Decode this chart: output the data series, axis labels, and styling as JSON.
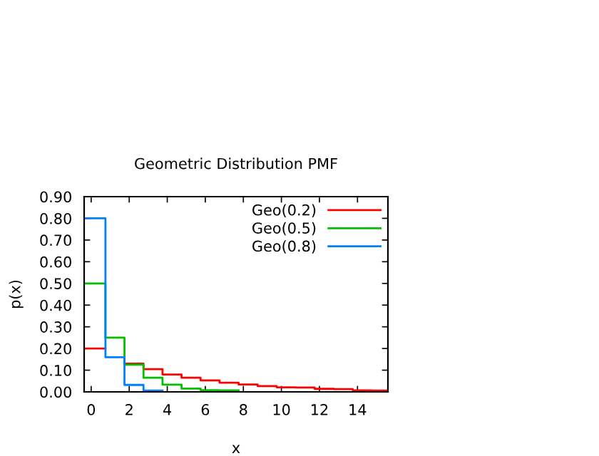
{
  "chart_data": {
    "type": "step",
    "title": "Geometric Distribution PMF",
    "xlabel": "x",
    "ylabel": "p(x)",
    "xlim": [
      -0.37,
      15.6
    ],
    "xticks": [
      0,
      2,
      4,
      6,
      8,
      10,
      12,
      14
    ],
    "ylim": [
      0,
      0.9
    ],
    "yticks": [
      {
        "value": 0,
        "label": "0.00"
      },
      {
        "value": 0.1,
        "label": "0.10"
      },
      {
        "value": 0.2,
        "label": "0.20"
      },
      {
        "value": 0.3,
        "label": "0.30"
      },
      {
        "value": 0.4,
        "label": "0.40"
      },
      {
        "value": 0.5,
        "label": "0.50"
      },
      {
        "value": 0.6,
        "label": "0.60"
      },
      {
        "value": 0.7,
        "label": "0.70"
      },
      {
        "value": 0.8,
        "label": "0.80"
      },
      {
        "value": 0.9,
        "label": "0.90"
      }
    ],
    "legend": "top right",
    "grid": false,
    "series": [
      {
        "name": "Geo(0.2)",
        "color": "#ff0000",
        "x": [
          -0.37,
          0.75,
          1.75,
          2.75,
          3.75,
          4.75,
          5.75,
          6.75,
          7.75,
          8.75,
          9.75,
          10.75,
          11.75,
          12.75,
          13.75,
          14.75,
          15.6
        ],
        "values": [
          0.2,
          null,
          0.13,
          0.105,
          0.08,
          0.065,
          0.053,
          0.042,
          0.034,
          0.027,
          0.021,
          0.02,
          0.014,
          0.013,
          0.007,
          0.006,
          0.006
        ]
      },
      {
        "name": "Geo(0.5)",
        "color": "#00c000",
        "x": [
          -0.37,
          0.75,
          1.75,
          2.75,
          3.75,
          4.75,
          5.75,
          6.75,
          7.75
        ],
        "values": [
          0.5,
          0.25,
          0.125,
          0.065,
          0.033,
          0.015,
          0.008,
          0.007,
          0.007
        ]
      },
      {
        "name": "Geo(0.8)",
        "color": "#0080ff",
        "x": [
          -0.37,
          0.75,
          1.75,
          2.75,
          3.75
        ],
        "values": [
          0.8,
          0.16,
          0.032,
          0.006,
          0.006
        ]
      }
    ]
  }
}
